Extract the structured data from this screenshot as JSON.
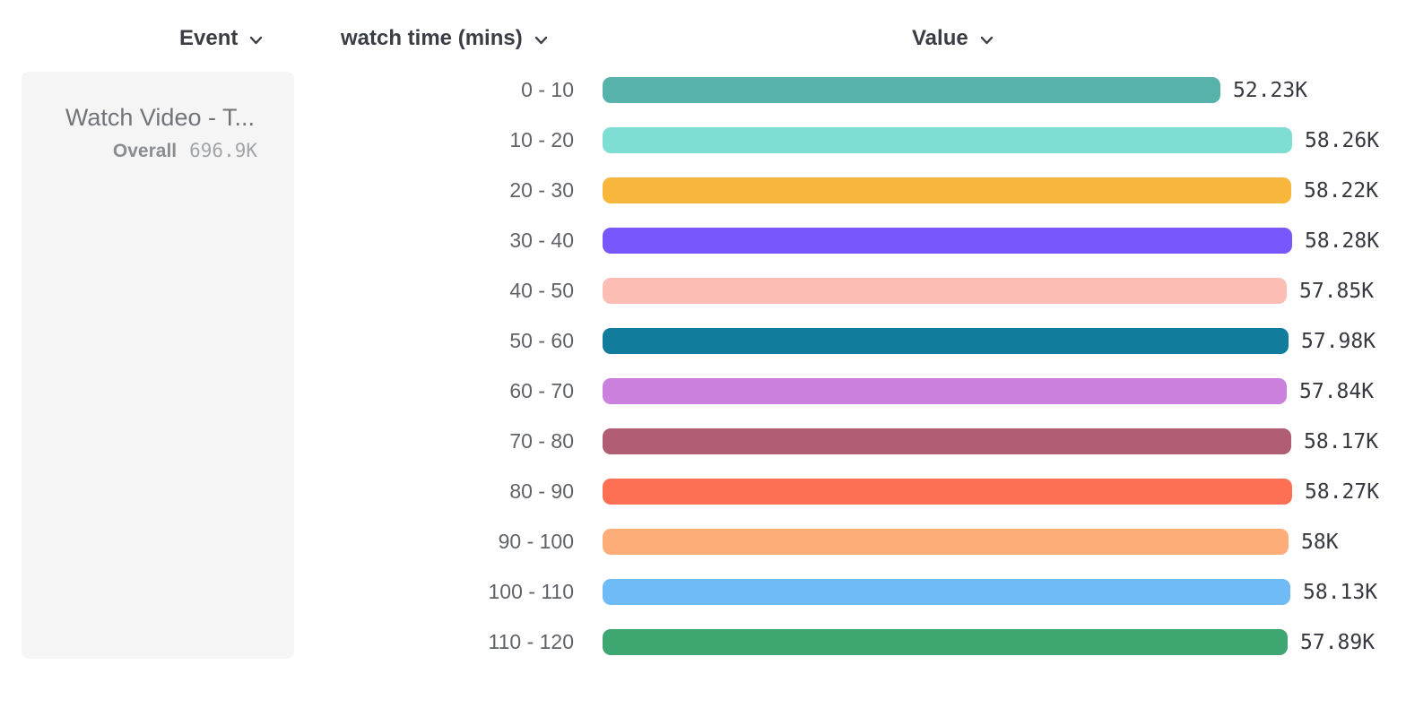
{
  "columns": {
    "event": {
      "label": "Event"
    },
    "breakdown": {
      "label": "watch time (mins)"
    },
    "value": {
      "label": "Value"
    }
  },
  "event_card": {
    "title": "Watch Video - T...",
    "overall_label": "Overall",
    "overall_value": "696.9K"
  },
  "chart_data": {
    "type": "bar",
    "orientation": "horizontal",
    "title": "",
    "xlabel": "Value",
    "ylabel": "watch time (mins)",
    "categories": [
      "0 - 10",
      "10 - 20",
      "20 - 30",
      "30 - 40",
      "40 - 50",
      "50 - 60",
      "60 - 70",
      "70 - 80",
      "80 - 90",
      "90 - 100",
      "100 - 110",
      "110 - 120"
    ],
    "values": [
      52230,
      58260,
      58220,
      58280,
      57850,
      57980,
      57840,
      58170,
      58270,
      58000,
      58130,
      57890
    ],
    "value_labels": [
      "52.23K",
      "58.26K",
      "58.22K",
      "58.28K",
      "57.85K",
      "57.98K",
      "57.84K",
      "58.17K",
      "58.27K",
      "58K",
      "58.13K",
      "57.89K"
    ],
    "bar_colors": [
      "#56B2AB",
      "#7FDED4",
      "#F6B73C",
      "#7858FC",
      "#FCBDB4",
      "#127C9C",
      "#CB80DE",
      "#B05C72",
      "#FD7053",
      "#FDAE78",
      "#6FBBF5",
      "#3EA671"
    ],
    "xlim": [
      0,
      58280
    ],
    "grid": false,
    "legend": false
  },
  "colors": {
    "background": "#FFFFFF",
    "header_text": "#3A3E44",
    "row_label_text": "#5F6368",
    "value_text": "#36393F",
    "card_bg": "#F5F5F5",
    "card_title_text": "#717479",
    "overall_label_text": "#8A8D92",
    "overall_value_text": "#A1A4A9"
  }
}
